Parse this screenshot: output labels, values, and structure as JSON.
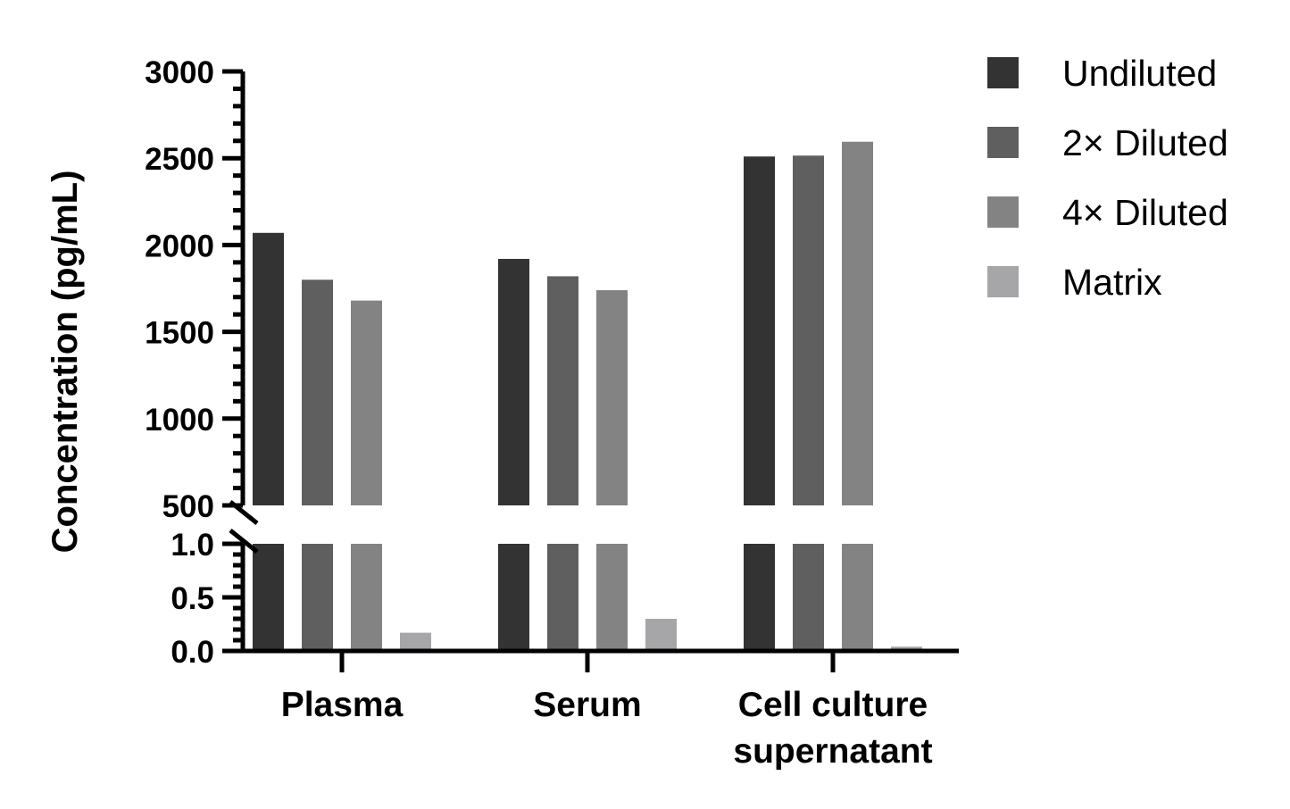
{
  "chart_data": {
    "type": "bar",
    "ylabel": "Concentration (pg/mL)",
    "xlabel": "",
    "categories": [
      "Plasma",
      "Serum",
      "Cell culture supernatant"
    ],
    "category_lines": [
      [
        "Plasma"
      ],
      [
        "Serum"
      ],
      [
        "Cell culture",
        "supernatant"
      ]
    ],
    "series": [
      {
        "name": "Undiluted",
        "color": "#333333",
        "values": [
          2070,
          1920,
          2510
        ]
      },
      {
        "name": "2× Diluted",
        "color": "#5f5f5f",
        "values": [
          1800,
          1820,
          2515
        ]
      },
      {
        "name": "4× Diluted",
        "color": "#838383",
        "values": [
          1680,
          1740,
          2595
        ]
      },
      {
        "name": "Matrix",
        "color": "#a6a6a8",
        "values": [
          0.17,
          0.3,
          0.04
        ]
      }
    ],
    "axis_break": {
      "lower_range": [
        0,
        1.0
      ],
      "upper_range": [
        500,
        3000
      ],
      "lower_ticks": [
        "0.0",
        "0.5",
        "1.0"
      ],
      "upper_ticks": [
        "500",
        "1000",
        "1500",
        "2000",
        "2500",
        "3000"
      ]
    },
    "legend_position": "top-right",
    "grid": false
  }
}
